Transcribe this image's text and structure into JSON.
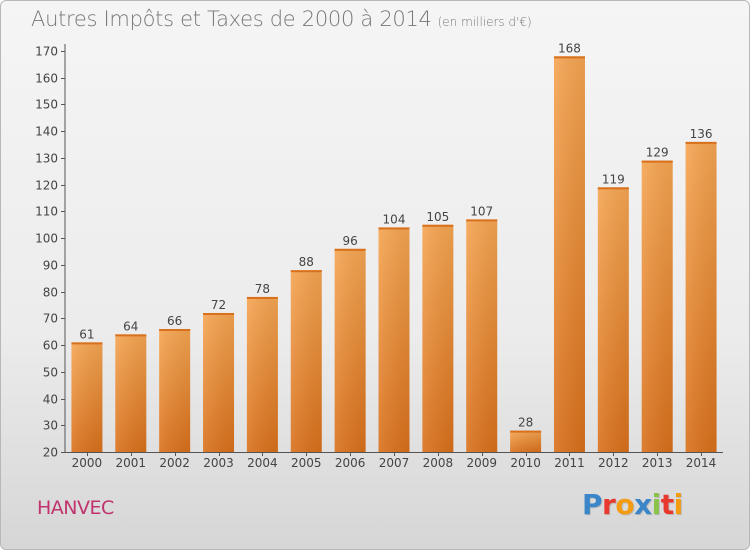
{
  "title": "Autres Impôts et Taxes de 2000 à 2014",
  "subtitle": "(en milliers d'€)",
  "commune": "HANVEC",
  "logo": {
    "letters": [
      "P",
      "r",
      "o",
      "x",
      "i",
      "t",
      "i"
    ],
    "colors": [
      "#3a86c8",
      "#e8392f",
      "#f39c12",
      "#3a86c8",
      "#8bc34a",
      "#e8392f",
      "#f39c12"
    ]
  },
  "chart_data": {
    "type": "bar",
    "categories": [
      "2000",
      "2001",
      "2002",
      "2003",
      "2004",
      "2005",
      "2006",
      "2007",
      "2008",
      "2009",
      "2010",
      "2011",
      "2012",
      "2013",
      "2014"
    ],
    "values": [
      61,
      64,
      66,
      72,
      78,
      88,
      96,
      104,
      105,
      107,
      28,
      168,
      119,
      129,
      136
    ],
    "title": "Autres Impôts et Taxes de 2000 à 2014",
    "subtitle": "(en milliers d'€)",
    "ylim": [
      20,
      170
    ],
    "yticks": [
      20,
      30,
      40,
      50,
      60,
      70,
      80,
      90,
      100,
      110,
      120,
      130,
      140,
      150,
      160,
      170
    ],
    "grid": false,
    "bar_color": "#f0903a",
    "bar_color_dark": "#d8701c",
    "legend": "none"
  }
}
